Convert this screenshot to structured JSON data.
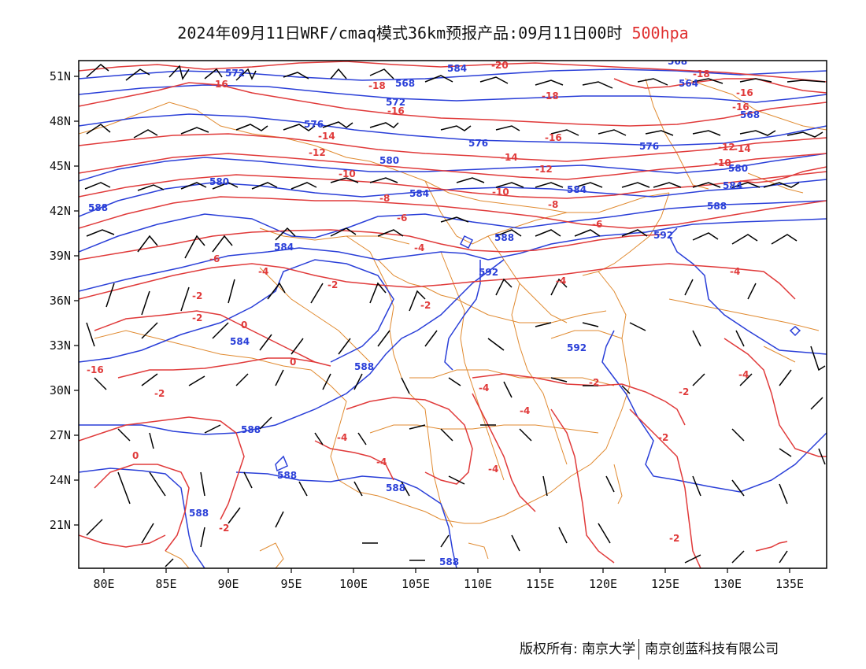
{
  "title": {
    "main": "2024年09月11日WRF/cmaq模式36km预报产品:09月11日00时",
    "level": "500hpa",
    "level_color": "#e03030"
  },
  "colors": {
    "height_contours": "#2a3fd8",
    "temperature_contours": "#e03a3a",
    "boundaries": "#e08a30",
    "wind_barbs": "#000000"
  },
  "axes": {
    "lon_ticks": [
      "80E",
      "85E",
      "90E",
      "95E",
      "100E",
      "105E",
      "110E",
      "115E",
      "120E",
      "125E",
      "130E",
      "135E"
    ],
    "lat_ticks": [
      "51N",
      "48N",
      "45N",
      "42N",
      "39N",
      "36N",
      "33N",
      "30N",
      "27N",
      "24N",
      "21N"
    ],
    "lon_range": [
      78,
      138
    ],
    "lat_range": [
      18.3,
      52.1
    ]
  },
  "height_labels": [
    "572",
    "584",
    "568",
    "572",
    "576",
    "576",
    "580",
    "584",
    "576",
    "580",
    "584",
    "588",
    "584",
    "588",
    "592",
    "584",
    "588",
    "592",
    "588",
    "588",
    "588",
    "588",
    "592",
    "588",
    "568",
    "564",
    "580",
    "584",
    "588",
    "568"
  ],
  "temp_labels": [
    "-16",
    "-18",
    "-20",
    "-18",
    "-16",
    "-16",
    "-14",
    "-16",
    "-14",
    "-12",
    "-12",
    "-10",
    "-12",
    "-10",
    "-8",
    "-8",
    "-6",
    "-6",
    "-4",
    "-6",
    "-2",
    "-4",
    "-2",
    "-2",
    "0",
    "-4",
    "-2",
    "0",
    "-2",
    "-4",
    "-4",
    "-2",
    "-4",
    "-2",
    "-2",
    "0",
    "-4",
    "-4",
    "-4",
    "-2",
    "-2",
    "-4",
    "-14",
    "-18",
    "-16",
    "-10",
    "-16"
  ],
  "copyright": {
    "left": "版权所有: 南京大学",
    "right": "南京创蓝科技有限公司"
  }
}
